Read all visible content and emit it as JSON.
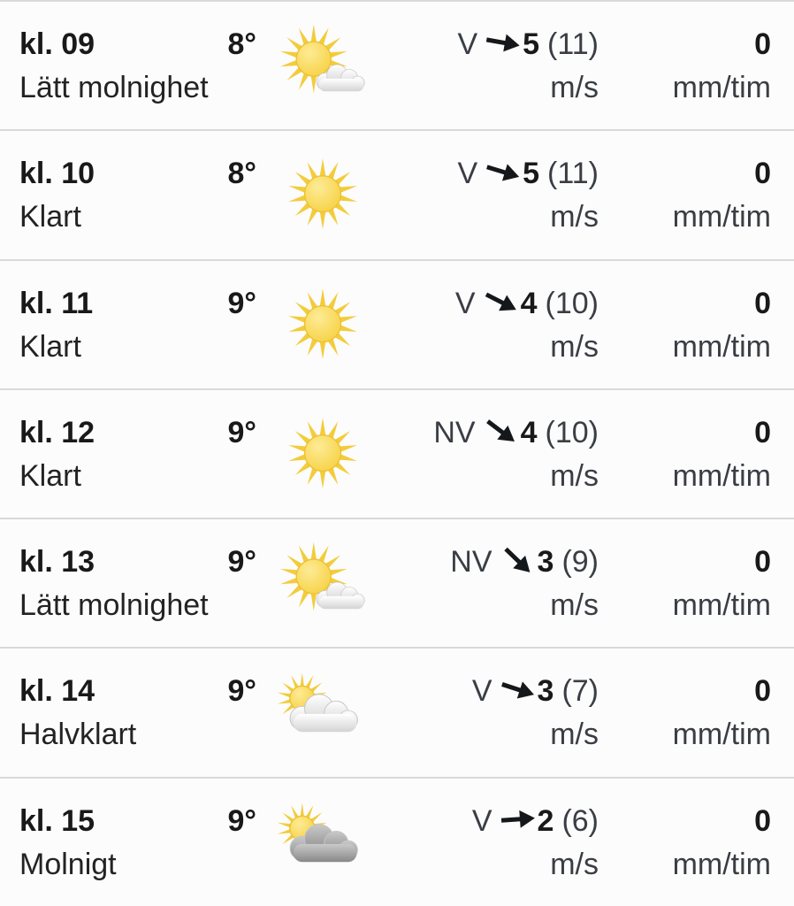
{
  "page": {
    "background": "#fcfcfc",
    "divider_color": "#d9d9d9",
    "text_primary": "#191919",
    "text_secondary": "#3a3e44"
  },
  "icon_colors": {
    "sun_core": "#f7d245",
    "sun_core_light": "#fdeb96",
    "sun_ray": "#f3cc3b",
    "sun_rim": "#edc235",
    "cloud_white_top": "#ffffff",
    "cloud_white_bottom": "#d3d3d3",
    "cloud_gray_top": "#c9c9c9",
    "cloud_gray_bottom": "#888888",
    "cloud_stroke": "#c6c6c6",
    "arrow": "#15181b"
  },
  "rows": [
    {
      "time": "kl. 09",
      "temp": "8°",
      "condition": "Lätt molnighet",
      "icon": "sun-small-cloud",
      "wind": {
        "dir": "V",
        "arrow_deg": 10,
        "speed": "5",
        "gust": "(11)",
        "unit": "m/s"
      },
      "precip": {
        "value": "0",
        "unit": "mm/tim"
      }
    },
    {
      "time": "kl. 10",
      "temp": "8°",
      "condition": "Klart",
      "icon": "sun",
      "wind": {
        "dir": "V",
        "arrow_deg": 17,
        "speed": "5",
        "gust": "(11)",
        "unit": "m/s"
      },
      "precip": {
        "value": "0",
        "unit": "mm/tim"
      }
    },
    {
      "time": "kl. 11",
      "temp": "9°",
      "condition": "Klart",
      "icon": "sun",
      "wind": {
        "dir": "V",
        "arrow_deg": 27,
        "speed": "4",
        "gust": "(10)",
        "unit": "m/s"
      },
      "precip": {
        "value": "0",
        "unit": "mm/tim"
      }
    },
    {
      "time": "kl. 12",
      "temp": "9°",
      "condition": "Klart",
      "icon": "sun",
      "wind": {
        "dir": "NV",
        "arrow_deg": 37,
        "speed": "4",
        "gust": "(10)",
        "unit": "m/s"
      },
      "precip": {
        "value": "0",
        "unit": "mm/tim"
      }
    },
    {
      "time": "kl. 13",
      "temp": "9°",
      "condition": "Lätt molnighet",
      "icon": "sun-small-cloud",
      "wind": {
        "dir": "NV",
        "arrow_deg": 44,
        "speed": "3",
        "gust": "(9)",
        "unit": "m/s"
      },
      "precip": {
        "value": "0",
        "unit": "mm/tim"
      }
    },
    {
      "time": "kl. 14",
      "temp": "9°",
      "condition": "Halvklart",
      "icon": "cloud-sun-white",
      "wind": {
        "dir": "V",
        "arrow_deg": 18,
        "speed": "3",
        "gust": "(7)",
        "unit": "m/s"
      },
      "precip": {
        "value": "0",
        "unit": "mm/tim"
      }
    },
    {
      "time": "kl. 15",
      "temp": "9°",
      "condition": "Molnigt",
      "icon": "cloud-sun-gray",
      "wind": {
        "dir": "V",
        "arrow_deg": -4,
        "speed": "2",
        "gust": "(6)",
        "unit": "m/s"
      },
      "precip": {
        "value": "0",
        "unit": "mm/tim"
      }
    }
  ]
}
